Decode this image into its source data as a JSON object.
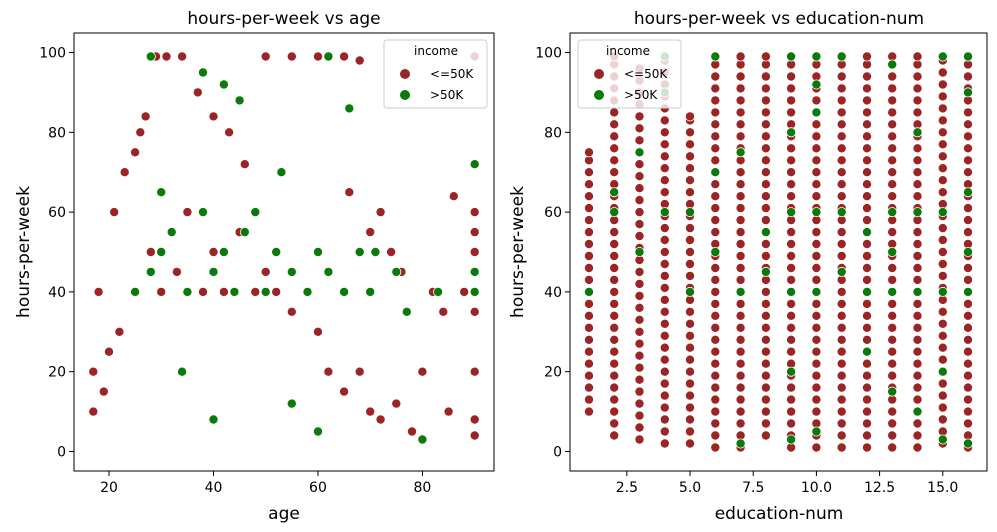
{
  "colors": {
    "le50k": "#9b2525",
    "gt50k": "#0a7a0a",
    "legend_bg": "#ffffff"
  },
  "chart_data": [
    {
      "type": "scatter",
      "title": "hours-per-week vs age",
      "xlabel": "age",
      "ylabel": "hours-per-week",
      "xlim": [
        13.3,
        93.7
      ],
      "ylim": [
        -4.9,
        104.9
      ],
      "xticks": [
        20,
        40,
        60,
        80
      ],
      "yticks": [
        0,
        20,
        40,
        60,
        80,
        100
      ],
      "legend": {
        "title": "income",
        "placement": "top-right",
        "entries": [
          "<=50K",
          ">50K"
        ]
      },
      "grid": false,
      "series": [
        {
          "name": "<=50K",
          "points": [
            [
              18,
              40
            ],
            [
              20,
              25
            ],
            [
              22,
              30
            ],
            [
              25,
              40
            ],
            [
              28,
              50
            ],
            [
              30,
              40
            ],
            [
              33,
              45
            ],
            [
              35,
              60
            ],
            [
              38,
              40
            ],
            [
              40,
              50
            ],
            [
              42,
              40
            ],
            [
              45,
              55
            ],
            [
              48,
              40
            ],
            [
              50,
              45
            ],
            [
              52,
              40
            ],
            [
              55,
              35
            ],
            [
              58,
              40
            ],
            [
              60,
              30
            ],
            [
              62,
              20
            ],
            [
              65,
              15
            ],
            [
              68,
              20
            ],
            [
              70,
              10
            ],
            [
              72,
              8
            ],
            [
              75,
              12
            ],
            [
              78,
              5
            ],
            [
              80,
              20
            ],
            [
              85,
              10
            ],
            [
              88,
              40
            ],
            [
              90,
              99
            ],
            [
              90,
              60
            ],
            [
              90,
              50
            ],
            [
              90,
              35
            ],
            [
              90,
              8
            ],
            [
              90,
              4
            ],
            [
              90,
              55
            ],
            [
              90,
              20
            ],
            [
              86,
              64
            ],
            [
              17,
              20
            ],
            [
              17,
              10
            ],
            [
              19,
              15
            ],
            [
              21,
              60
            ],
            [
              23,
              70
            ],
            [
              25,
              75
            ],
            [
              26,
              80
            ],
            [
              27,
              84
            ],
            [
              29,
              99
            ],
            [
              31,
              99
            ],
            [
              34,
              99
            ],
            [
              37,
              90
            ],
            [
              40,
              84
            ],
            [
              43,
              80
            ],
            [
              46,
              72
            ],
            [
              50,
              99
            ],
            [
              55,
              99
            ],
            [
              60,
              99
            ],
            [
              65,
              99
            ],
            [
              68,
              98
            ],
            [
              74,
              50
            ],
            [
              76,
              45
            ],
            [
              82,
              40
            ],
            [
              84,
              35
            ],
            [
              70,
              55
            ],
            [
              72,
              60
            ],
            [
              66,
              65
            ]
          ]
        },
        {
          "name": ">50K",
          "points": [
            [
              25,
              40
            ],
            [
              28,
              45
            ],
            [
              30,
              50
            ],
            [
              32,
              55
            ],
            [
              35,
              40
            ],
            [
              38,
              60
            ],
            [
              40,
              45
            ],
            [
              42,
              50
            ],
            [
              44,
              40
            ],
            [
              46,
              55
            ],
            [
              48,
              60
            ],
            [
              50,
              40
            ],
            [
              52,
              50
            ],
            [
              55,
              45
            ],
            [
              58,
              40
            ],
            [
              60,
              50
            ],
            [
              62,
              45
            ],
            [
              65,
              40
            ],
            [
              68,
              50
            ],
            [
              70,
              40
            ],
            [
              75,
              45
            ],
            [
              80,
              3
            ],
            [
              83,
              40
            ],
            [
              90,
              72
            ],
            [
              90,
              45
            ],
            [
              90,
              40
            ],
            [
              66,
              86
            ],
            [
              62,
              99
            ],
            [
              42,
              92
            ],
            [
              38,
              95
            ],
            [
              45,
              88
            ],
            [
              30,
              65
            ],
            [
              34,
              20
            ],
            [
              40,
              8
            ],
            [
              55,
              12
            ],
            [
              60,
              5
            ],
            [
              28,
              99
            ],
            [
              71,
              50
            ],
            [
              77,
              35
            ],
            [
              53,
              70
            ]
          ]
        }
      ]
    },
    {
      "type": "scatter",
      "title": "hours-per-week vs education-num",
      "xlabel": "education-num",
      "ylabel": "hours-per-week",
      "xlim": [
        0.25,
        16.75
      ],
      "ylim": [
        -4.9,
        104.9
      ],
      "xticks": [
        2.5,
        5.0,
        7.5,
        10.0,
        12.5,
        15.0
      ],
      "yticks": [
        0,
        20,
        40,
        60,
        80,
        100
      ],
      "legend": {
        "title": "income",
        "placement": "top-left",
        "entries": [
          "<=50K",
          ">50K"
        ]
      },
      "grid": false,
      "series": [
        {
          "name": "<=50K",
          "ranges": [
            {
              "x": 1,
              "ymin": 10,
              "ymax": 75
            },
            {
              "x": 2,
              "ymin": 4,
              "ymax": 99
            },
            {
              "x": 3,
              "ymin": 3,
              "ymax": 96
            },
            {
              "x": 4,
              "ymin": 2,
              "ymax": 99
            },
            {
              "x": 5,
              "ymin": 2,
              "ymax": 84
            },
            {
              "x": 6,
              "ymin": 1,
              "ymax": 99
            },
            {
              "x": 7,
              "ymin": 1,
              "ymax": 99
            },
            {
              "x": 8,
              "ymin": 4,
              "ymax": 99
            },
            {
              "x": 9,
              "ymin": 1,
              "ymax": 99
            },
            {
              "x": 10,
              "ymin": 1,
              "ymax": 99
            },
            {
              "x": 11,
              "ymin": 1,
              "ymax": 99
            },
            {
              "x": 12,
              "ymin": 1,
              "ymax": 99
            },
            {
              "x": 13,
              "ymin": 1,
              "ymax": 99
            },
            {
              "x": 14,
              "ymin": 1,
              "ymax": 99
            },
            {
              "x": 15,
              "ymin": 2,
              "ymax": 99
            },
            {
              "x": 16,
              "ymin": 1,
              "ymax": 99
            }
          ]
        },
        {
          "name": ">50K",
          "points": [
            [
              1,
              40
            ],
            [
              2,
              60
            ],
            [
              2,
              65
            ],
            [
              3,
              75
            ],
            [
              3,
              50
            ],
            [
              4,
              99
            ],
            [
              4,
              90
            ],
            [
              4,
              60
            ],
            [
              5,
              40
            ],
            [
              5,
              60
            ],
            [
              6,
              99
            ],
            [
              6,
              50
            ],
            [
              6,
              70
            ],
            [
              7,
              75
            ],
            [
              7,
              40
            ],
            [
              7,
              2
            ],
            [
              8,
              45
            ],
            [
              8,
              55
            ],
            [
              9,
              99
            ],
            [
              9,
              20
            ],
            [
              9,
              40
            ],
            [
              9,
              60
            ],
            [
              9,
              80
            ],
            [
              9,
              3
            ],
            [
              10,
              99
            ],
            [
              10,
              92
            ],
            [
              10,
              85
            ],
            [
              10,
              40
            ],
            [
              10,
              60
            ],
            [
              10,
              5
            ],
            [
              11,
              99
            ],
            [
              11,
              45
            ],
            [
              11,
              60
            ],
            [
              12,
              40
            ],
            [
              12,
              55
            ],
            [
              12,
              25
            ],
            [
              13,
              97
            ],
            [
              13,
              40
            ],
            [
              13,
              50
            ],
            [
              13,
              60
            ],
            [
              13,
              15
            ],
            [
              14,
              80
            ],
            [
              14,
              40
            ],
            [
              14,
              60
            ],
            [
              14,
              10
            ],
            [
              15,
              99
            ],
            [
              15,
              40
            ],
            [
              15,
              60
            ],
            [
              15,
              20
            ],
            [
              15,
              3
            ],
            [
              16,
              99
            ],
            [
              16,
              90
            ],
            [
              16,
              40
            ],
            [
              16,
              50
            ],
            [
              16,
              65
            ],
            [
              16,
              2
            ]
          ]
        }
      ]
    }
  ]
}
